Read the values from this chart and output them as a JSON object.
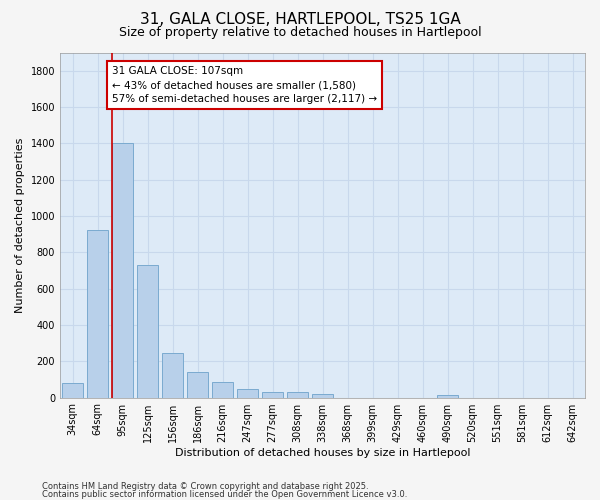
{
  "title1": "31, GALA CLOSE, HARTLEPOOL, TS25 1GA",
  "title2": "Size of property relative to detached houses in Hartlepool",
  "xlabel": "Distribution of detached houses by size in Hartlepool",
  "ylabel": "Number of detached properties",
  "categories": [
    "34sqm",
    "64sqm",
    "95sqm",
    "125sqm",
    "156sqm",
    "186sqm",
    "216sqm",
    "247sqm",
    "277sqm",
    "308sqm",
    "338sqm",
    "368sqm",
    "399sqm",
    "429sqm",
    "460sqm",
    "490sqm",
    "520sqm",
    "551sqm",
    "581sqm",
    "612sqm",
    "642sqm"
  ],
  "values": [
    80,
    920,
    1400,
    730,
    245,
    140,
    85,
    50,
    30,
    30,
    20,
    0,
    0,
    0,
    0,
    15,
    0,
    0,
    0,
    0,
    0
  ],
  "bar_color": "#b8d0ea",
  "bar_edge_color": "#7aaad0",
  "red_line_index": 2,
  "annotation_line1": "31 GALA CLOSE: 107sqm",
  "annotation_line2": "← 43% of detached houses are smaller (1,580)",
  "annotation_line3": "57% of semi-detached houses are larger (2,117) →",
  "annotation_box_color": "#ffffff",
  "annotation_box_edge": "#cc0000",
  "red_line_color": "#cc0000",
  "ylim": [
    0,
    1900
  ],
  "yticks": [
    0,
    200,
    400,
    600,
    800,
    1000,
    1200,
    1400,
    1600,
    1800
  ],
  "fig_background": "#f5f5f5",
  "plot_background": "#ddeaf7",
  "grid_color": "#c8d8ec",
  "footer1": "Contains HM Land Registry data © Crown copyright and database right 2025.",
  "footer2": "Contains public sector information licensed under the Open Government Licence v3.0.",
  "title_fontsize": 11,
  "subtitle_fontsize": 9,
  "tick_fontsize": 7,
  "ylabel_fontsize": 8,
  "xlabel_fontsize": 8,
  "annotation_fontsize": 7.5
}
